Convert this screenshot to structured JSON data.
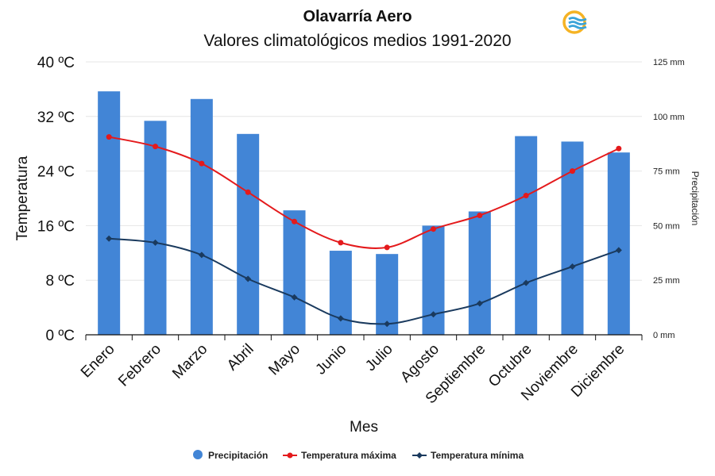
{
  "chart_data": {
    "type": "bar+line",
    "title": "Olavarría Aero",
    "subtitle": "Valores climatológicos medios 1991-2020",
    "xlabel": "Mes",
    "ylabel": "Temperatura",
    "y2label": "Precipitación",
    "categories": [
      "Enero",
      "Febrero",
      "Marzo",
      "Abril",
      "Mayo",
      "Junio",
      "Julio",
      "Agosto",
      "Septiembre",
      "Octubre",
      "Noviembre",
      "Diciembre"
    ],
    "yticks": [
      "0 ºC",
      "8 ºC",
      "16 ºC",
      "24 ºC",
      "32 ºC",
      "40 ºC"
    ],
    "ylim": [
      0,
      40
    ],
    "y2ticks": [
      "0 mm",
      "25 mm",
      "50 mm",
      "75 mm",
      "100 mm",
      "125 mm"
    ],
    "y2lim": [
      0,
      125
    ],
    "grid": true,
    "legend_position": "bottom",
    "series": [
      {
        "name": "Precipitación",
        "kind": "bar",
        "axis": "right",
        "color": "#4285d6",
        "values": [
          111.5,
          98,
          108,
          92,
          57,
          38.5,
          37,
          50,
          56.5,
          91,
          88.5,
          83.5
        ]
      },
      {
        "name": "Temperatura máxima",
        "kind": "line",
        "axis": "left",
        "color": "#e41a1c",
        "values": [
          29.0,
          27.6,
          25.1,
          20.9,
          16.6,
          13.5,
          12.8,
          15.5,
          17.5,
          20.4,
          24.0,
          27.3
        ]
      },
      {
        "name": "Temperatura mínima",
        "kind": "line",
        "axis": "left",
        "color": "#1a3a5e",
        "values": [
          14.1,
          13.5,
          11.7,
          8.2,
          5.5,
          2.4,
          1.6,
          3.0,
          4.6,
          7.6,
          10.0,
          12.4
        ]
      }
    ]
  }
}
